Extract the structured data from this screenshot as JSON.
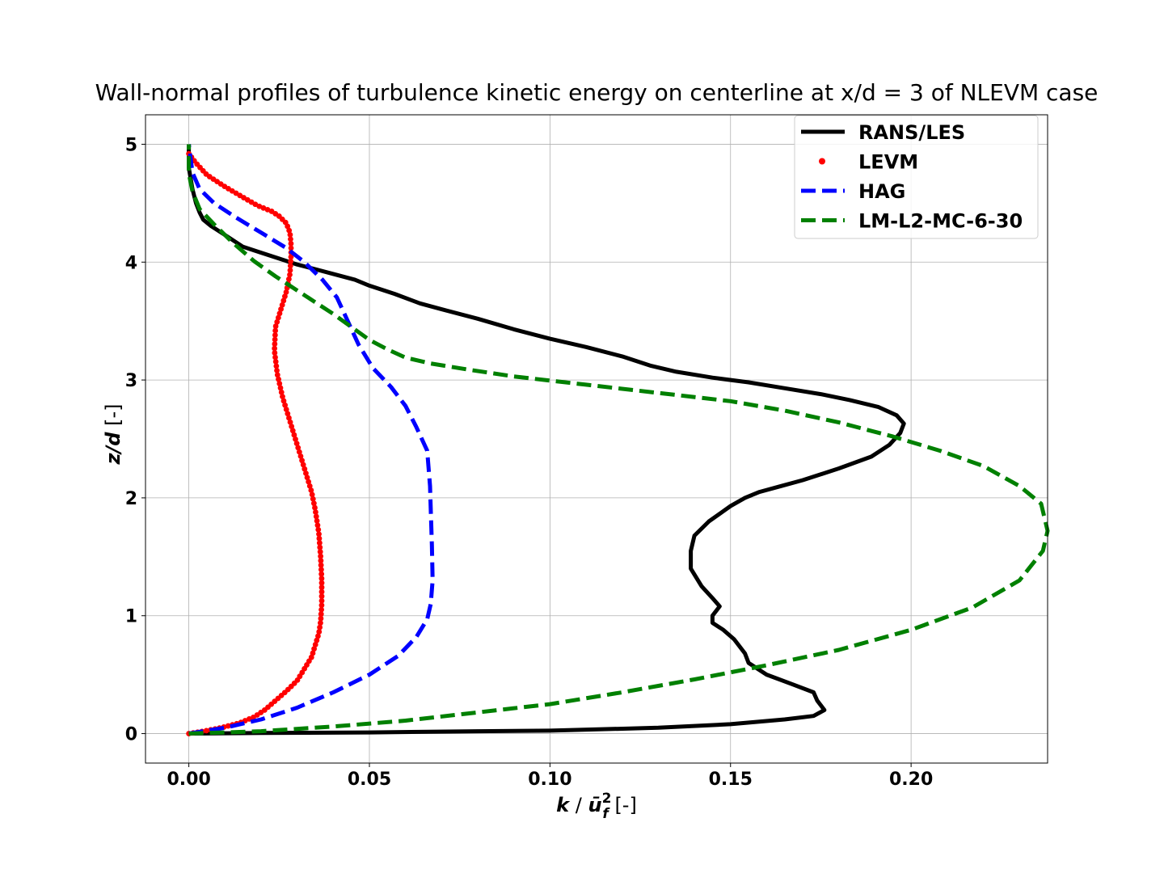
{
  "chart_data": {
    "type": "line",
    "title": "Wall-normal profiles of turbulence kinetic energy on centerline at x/d = 3 of NLEVM case",
    "xlabel": {
      "symbol": "k",
      "sep": " / ",
      "base": "ū",
      "sup": "2",
      "sub": "f",
      "unit": " [-]"
    },
    "ylabel": {
      "symbol": "z/d",
      "unit": " [-]"
    },
    "xlim": [
      -0.012,
      0.2378
    ],
    "ylim": [
      -0.25,
      5.25
    ],
    "x_ticks": [
      0.0,
      0.05,
      0.1,
      0.15,
      0.2
    ],
    "x_tick_labels": [
      "0.00",
      "0.05",
      "0.10",
      "0.15",
      "0.20"
    ],
    "y_ticks": [
      0,
      1,
      2,
      3,
      4,
      5
    ],
    "y_tick_labels": [
      "0",
      "1",
      "2",
      "3",
      "4",
      "5"
    ],
    "grid": true,
    "legend_position": "top-right",
    "series": [
      {
        "name": "RANS/LES",
        "style": "solid",
        "color": "#000000",
        "points": [
          [
            0.0,
            0.0
          ],
          [
            0.02,
            0.005
          ],
          [
            0.05,
            0.01
          ],
          [
            0.08,
            0.02
          ],
          [
            0.1,
            0.025
          ],
          [
            0.13,
            0.05
          ],
          [
            0.15,
            0.08
          ],
          [
            0.165,
            0.12
          ],
          [
            0.173,
            0.15
          ],
          [
            0.176,
            0.2
          ],
          [
            0.174,
            0.28
          ],
          [
            0.173,
            0.35
          ],
          [
            0.167,
            0.42
          ],
          [
            0.16,
            0.5
          ],
          [
            0.155,
            0.6
          ],
          [
            0.154,
            0.68
          ],
          [
            0.151,
            0.8
          ],
          [
            0.148,
            0.88
          ],
          [
            0.145,
            0.94
          ],
          [
            0.145,
            1.0
          ],
          [
            0.147,
            1.08
          ],
          [
            0.145,
            1.15
          ],
          [
            0.142,
            1.25
          ],
          [
            0.139,
            1.4
          ],
          [
            0.139,
            1.55
          ],
          [
            0.14,
            1.68
          ],
          [
            0.144,
            1.8
          ],
          [
            0.15,
            1.93
          ],
          [
            0.154,
            2.0
          ],
          [
            0.158,
            2.05
          ],
          [
            0.164,
            2.1
          ],
          [
            0.17,
            2.15
          ],
          [
            0.18,
            2.25
          ],
          [
            0.189,
            2.35
          ],
          [
            0.194,
            2.45
          ],
          [
            0.197,
            2.55
          ],
          [
            0.198,
            2.63
          ],
          [
            0.196,
            2.7
          ],
          [
            0.191,
            2.77
          ],
          [
            0.183,
            2.83
          ],
          [
            0.175,
            2.88
          ],
          [
            0.165,
            2.93
          ],
          [
            0.155,
            2.98
          ],
          [
            0.145,
            3.02
          ],
          [
            0.135,
            3.07
          ],
          [
            0.128,
            3.12
          ],
          [
            0.12,
            3.2
          ],
          [
            0.11,
            3.28
          ],
          [
            0.1,
            3.35
          ],
          [
            0.09,
            3.43
          ],
          [
            0.08,
            3.52
          ],
          [
            0.07,
            3.6
          ],
          [
            0.064,
            3.65
          ],
          [
            0.057,
            3.73
          ],
          [
            0.05,
            3.8
          ],
          [
            0.046,
            3.85
          ],
          [
            0.04,
            3.9
          ],
          [
            0.035,
            3.94
          ],
          [
            0.03,
            3.98
          ],
          [
            0.025,
            4.03
          ],
          [
            0.02,
            4.08
          ],
          [
            0.015,
            4.13
          ],
          [
            0.01,
            4.23
          ],
          [
            0.006,
            4.31
          ],
          [
            0.004,
            4.36
          ],
          [
            0.003,
            4.42
          ],
          [
            0.002,
            4.5
          ],
          [
            0.001,
            4.62
          ],
          [
            0.0,
            4.8
          ],
          [
            0.0,
            5.0
          ]
        ]
      },
      {
        "name": "LEVM",
        "style": "dots",
        "color": "#ff0000",
        "points": [
          [
            0.0,
            0.0
          ],
          [
            0.004,
            0.02
          ],
          [
            0.009,
            0.05
          ],
          [
            0.014,
            0.09
          ],
          [
            0.018,
            0.14
          ],
          [
            0.021,
            0.2
          ],
          [
            0.024,
            0.28
          ],
          [
            0.027,
            0.36
          ],
          [
            0.03,
            0.45
          ],
          [
            0.032,
            0.55
          ],
          [
            0.034,
            0.65
          ],
          [
            0.035,
            0.75
          ],
          [
            0.036,
            0.85
          ],
          [
            0.0365,
            0.95
          ],
          [
            0.0368,
            1.1
          ],
          [
            0.0368,
            1.3
          ],
          [
            0.0365,
            1.5
          ],
          [
            0.036,
            1.7
          ],
          [
            0.035,
            1.9
          ],
          [
            0.034,
            2.05
          ],
          [
            0.032,
            2.25
          ],
          [
            0.03,
            2.45
          ],
          [
            0.028,
            2.65
          ],
          [
            0.026,
            2.85
          ],
          [
            0.0245,
            3.05
          ],
          [
            0.0237,
            3.25
          ],
          [
            0.024,
            3.45
          ],
          [
            0.0255,
            3.6
          ],
          [
            0.027,
            3.75
          ],
          [
            0.028,
            3.9
          ],
          [
            0.0283,
            4.05
          ],
          [
            0.0283,
            4.15
          ],
          [
            0.028,
            4.25
          ],
          [
            0.027,
            4.33
          ],
          [
            0.025,
            4.39
          ],
          [
            0.023,
            4.43
          ],
          [
            0.019,
            4.48
          ],
          [
            0.015,
            4.55
          ],
          [
            0.01,
            4.64
          ],
          [
            0.005,
            4.74
          ],
          [
            0.002,
            4.84
          ],
          [
            0.0,
            4.92
          ]
        ]
      },
      {
        "name": "HAG",
        "style": "dashed",
        "color": "#0000ff",
        "points": [
          [
            0.0,
            0.0
          ],
          [
            0.01,
            0.05
          ],
          [
            0.02,
            0.12
          ],
          [
            0.03,
            0.22
          ],
          [
            0.04,
            0.35
          ],
          [
            0.05,
            0.5
          ],
          [
            0.058,
            0.66
          ],
          [
            0.063,
            0.82
          ],
          [
            0.066,
            0.97
          ],
          [
            0.067,
            1.1
          ],
          [
            0.0675,
            1.3
          ],
          [
            0.0673,
            1.6
          ],
          [
            0.067,
            1.9
          ],
          [
            0.0668,
            2.1
          ],
          [
            0.066,
            2.4
          ],
          [
            0.063,
            2.6
          ],
          [
            0.06,
            2.78
          ],
          [
            0.056,
            2.94
          ],
          [
            0.051,
            3.1
          ],
          [
            0.047,
            3.3
          ],
          [
            0.044,
            3.5
          ],
          [
            0.041,
            3.7
          ],
          [
            0.037,
            3.85
          ],
          [
            0.032,
            4.0
          ],
          [
            0.027,
            4.12
          ],
          [
            0.02,
            4.25
          ],
          [
            0.013,
            4.38
          ],
          [
            0.007,
            4.5
          ],
          [
            0.003,
            4.62
          ],
          [
            0.001,
            4.76
          ],
          [
            0.0,
            5.0
          ]
        ]
      },
      {
        "name": "LM-L2-MC-6-30",
        "style": "dashed",
        "color": "#008000",
        "points": [
          [
            0.0,
            0.0
          ],
          [
            0.02,
            0.02
          ],
          [
            0.04,
            0.06
          ],
          [
            0.06,
            0.11
          ],
          [
            0.08,
            0.18
          ],
          [
            0.1,
            0.25
          ],
          [
            0.12,
            0.35
          ],
          [
            0.14,
            0.46
          ],
          [
            0.16,
            0.58
          ],
          [
            0.18,
            0.71
          ],
          [
            0.2,
            0.88
          ],
          [
            0.217,
            1.07
          ],
          [
            0.23,
            1.3
          ],
          [
            0.2365,
            1.55
          ],
          [
            0.2378,
            1.72
          ],
          [
            0.236,
            1.95
          ],
          [
            0.23,
            2.1
          ],
          [
            0.22,
            2.27
          ],
          [
            0.208,
            2.4
          ],
          [
            0.195,
            2.52
          ],
          [
            0.18,
            2.64
          ],
          [
            0.165,
            2.74
          ],
          [
            0.15,
            2.82
          ],
          [
            0.13,
            2.89
          ],
          [
            0.11,
            2.96
          ],
          [
            0.09,
            3.03
          ],
          [
            0.077,
            3.09
          ],
          [
            0.067,
            3.14
          ],
          [
            0.06,
            3.19
          ],
          [
            0.055,
            3.26
          ],
          [
            0.05,
            3.34
          ],
          [
            0.045,
            3.45
          ],
          [
            0.04,
            3.56
          ],
          [
            0.035,
            3.66
          ],
          [
            0.03,
            3.76
          ],
          [
            0.024,
            3.88
          ],
          [
            0.018,
            4.01
          ],
          [
            0.012,
            4.17
          ],
          [
            0.007,
            4.32
          ],
          [
            0.003,
            4.45
          ],
          [
            0.001,
            4.6
          ],
          [
            0.0,
            4.75
          ],
          [
            0.0,
            5.0
          ]
        ]
      }
    ]
  }
}
